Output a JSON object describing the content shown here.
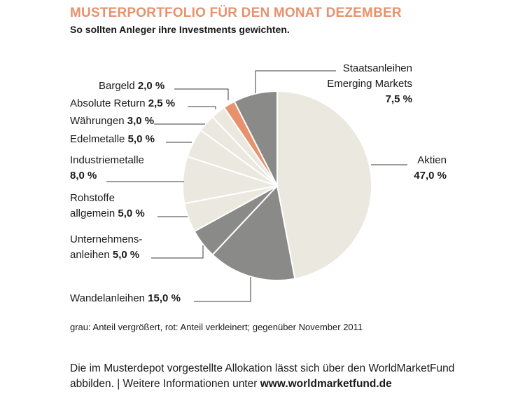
{
  "title": "MUSTERPORTFOLIO FÜR DEN MONAT DEZEMBER",
  "subtitle": "So sollten Anleger ihre Investments gewichten.",
  "note": "grau: Anteil vergrößert, rot: Anteil verkleinert; gegenüber November 2011",
  "footer": {
    "line1": "Die im Musterdepot vorgestellte Allokation lässt sich über den WorldMarketFund",
    "line2_text": "abbilden. | Weitere Informationen unter ",
    "line2_link": "www.worldmarketfund.de"
  },
  "colors": {
    "grau": "#8a8a88",
    "rot": "#e8926d",
    "unveraendert": "#ebe8e0",
    "title": "#e8926d"
  },
  "chart_data": {
    "type": "pie",
    "unit": "%",
    "slices": [
      {
        "key": "aktien",
        "label_lines": [
          "Aktien"
        ],
        "value_text": "47,0 %",
        "value": 47.0,
        "status": "unveraendert"
      },
      {
        "key": "wandelanleihen",
        "label_lines": [
          "Wandelanleihen"
        ],
        "value_text": "15,0 %",
        "value": 15.0,
        "status": "grau"
      },
      {
        "key": "unternehmensanleihen",
        "label_lines": [
          "Unternehmens-",
          "anleihen"
        ],
        "value_text": "5,0 %",
        "value": 5.0,
        "status": "grau"
      },
      {
        "key": "rohstoffe",
        "label_lines": [
          "Rohstoffe",
          "allgemein"
        ],
        "value_text": "5,0 %",
        "value": 5.0,
        "status": "unveraendert"
      },
      {
        "key": "industriemetalle",
        "label_lines": [
          "Industriemetalle"
        ],
        "value_text": "8,0 %",
        "value": 8.0,
        "status": "unveraendert"
      },
      {
        "key": "edelmetalle",
        "label_lines": [
          "Edelmetalle"
        ],
        "value_text": "5,0 %",
        "value": 5.0,
        "status": "unveraendert"
      },
      {
        "key": "waehrungen",
        "label_lines": [
          "Währungen"
        ],
        "value_text": "3,0 %",
        "value": 3.0,
        "status": "unveraendert"
      },
      {
        "key": "absolute-return",
        "label_lines": [
          "Absolute Return"
        ],
        "value_text": "2,5 %",
        "value": 2.5,
        "status": "unveraendert"
      },
      {
        "key": "bargeld",
        "label_lines": [
          "Bargeld"
        ],
        "value_text": "2,0 %",
        "value": 2.0,
        "status": "rot"
      },
      {
        "key": "staatsanleihen-em",
        "label_lines": [
          "Staatsanleihen",
          "Emerging Markets"
        ],
        "value_text": "7,5 %",
        "value": 7.5,
        "status": "grau"
      }
    ]
  }
}
